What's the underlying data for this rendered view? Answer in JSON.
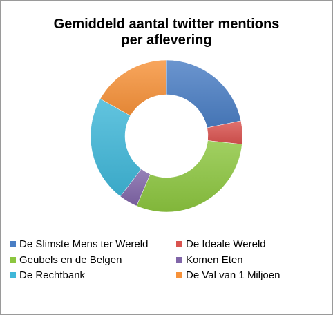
{
  "chart_data": {
    "type": "pie",
    "donut": true,
    "title_lines": [
      "Gemiddeld aantal twitter mentions",
      "per aflevering"
    ],
    "categories": [
      "De Slimste Mens ter Wereld",
      "De Ideale Wereld",
      "Geubels en de Belgen",
      "Komen Eten",
      "De Rechtbank",
      "De Val van 1 Miljoen"
    ],
    "values": [
      22,
      5,
      30,
      4,
      23,
      17
    ],
    "colors": [
      "#4a7ec4",
      "#d9534f",
      "#8cc63f",
      "#8065a8",
      "#3fb7d8",
      "#f7923a"
    ],
    "legend_position": "bottom"
  }
}
